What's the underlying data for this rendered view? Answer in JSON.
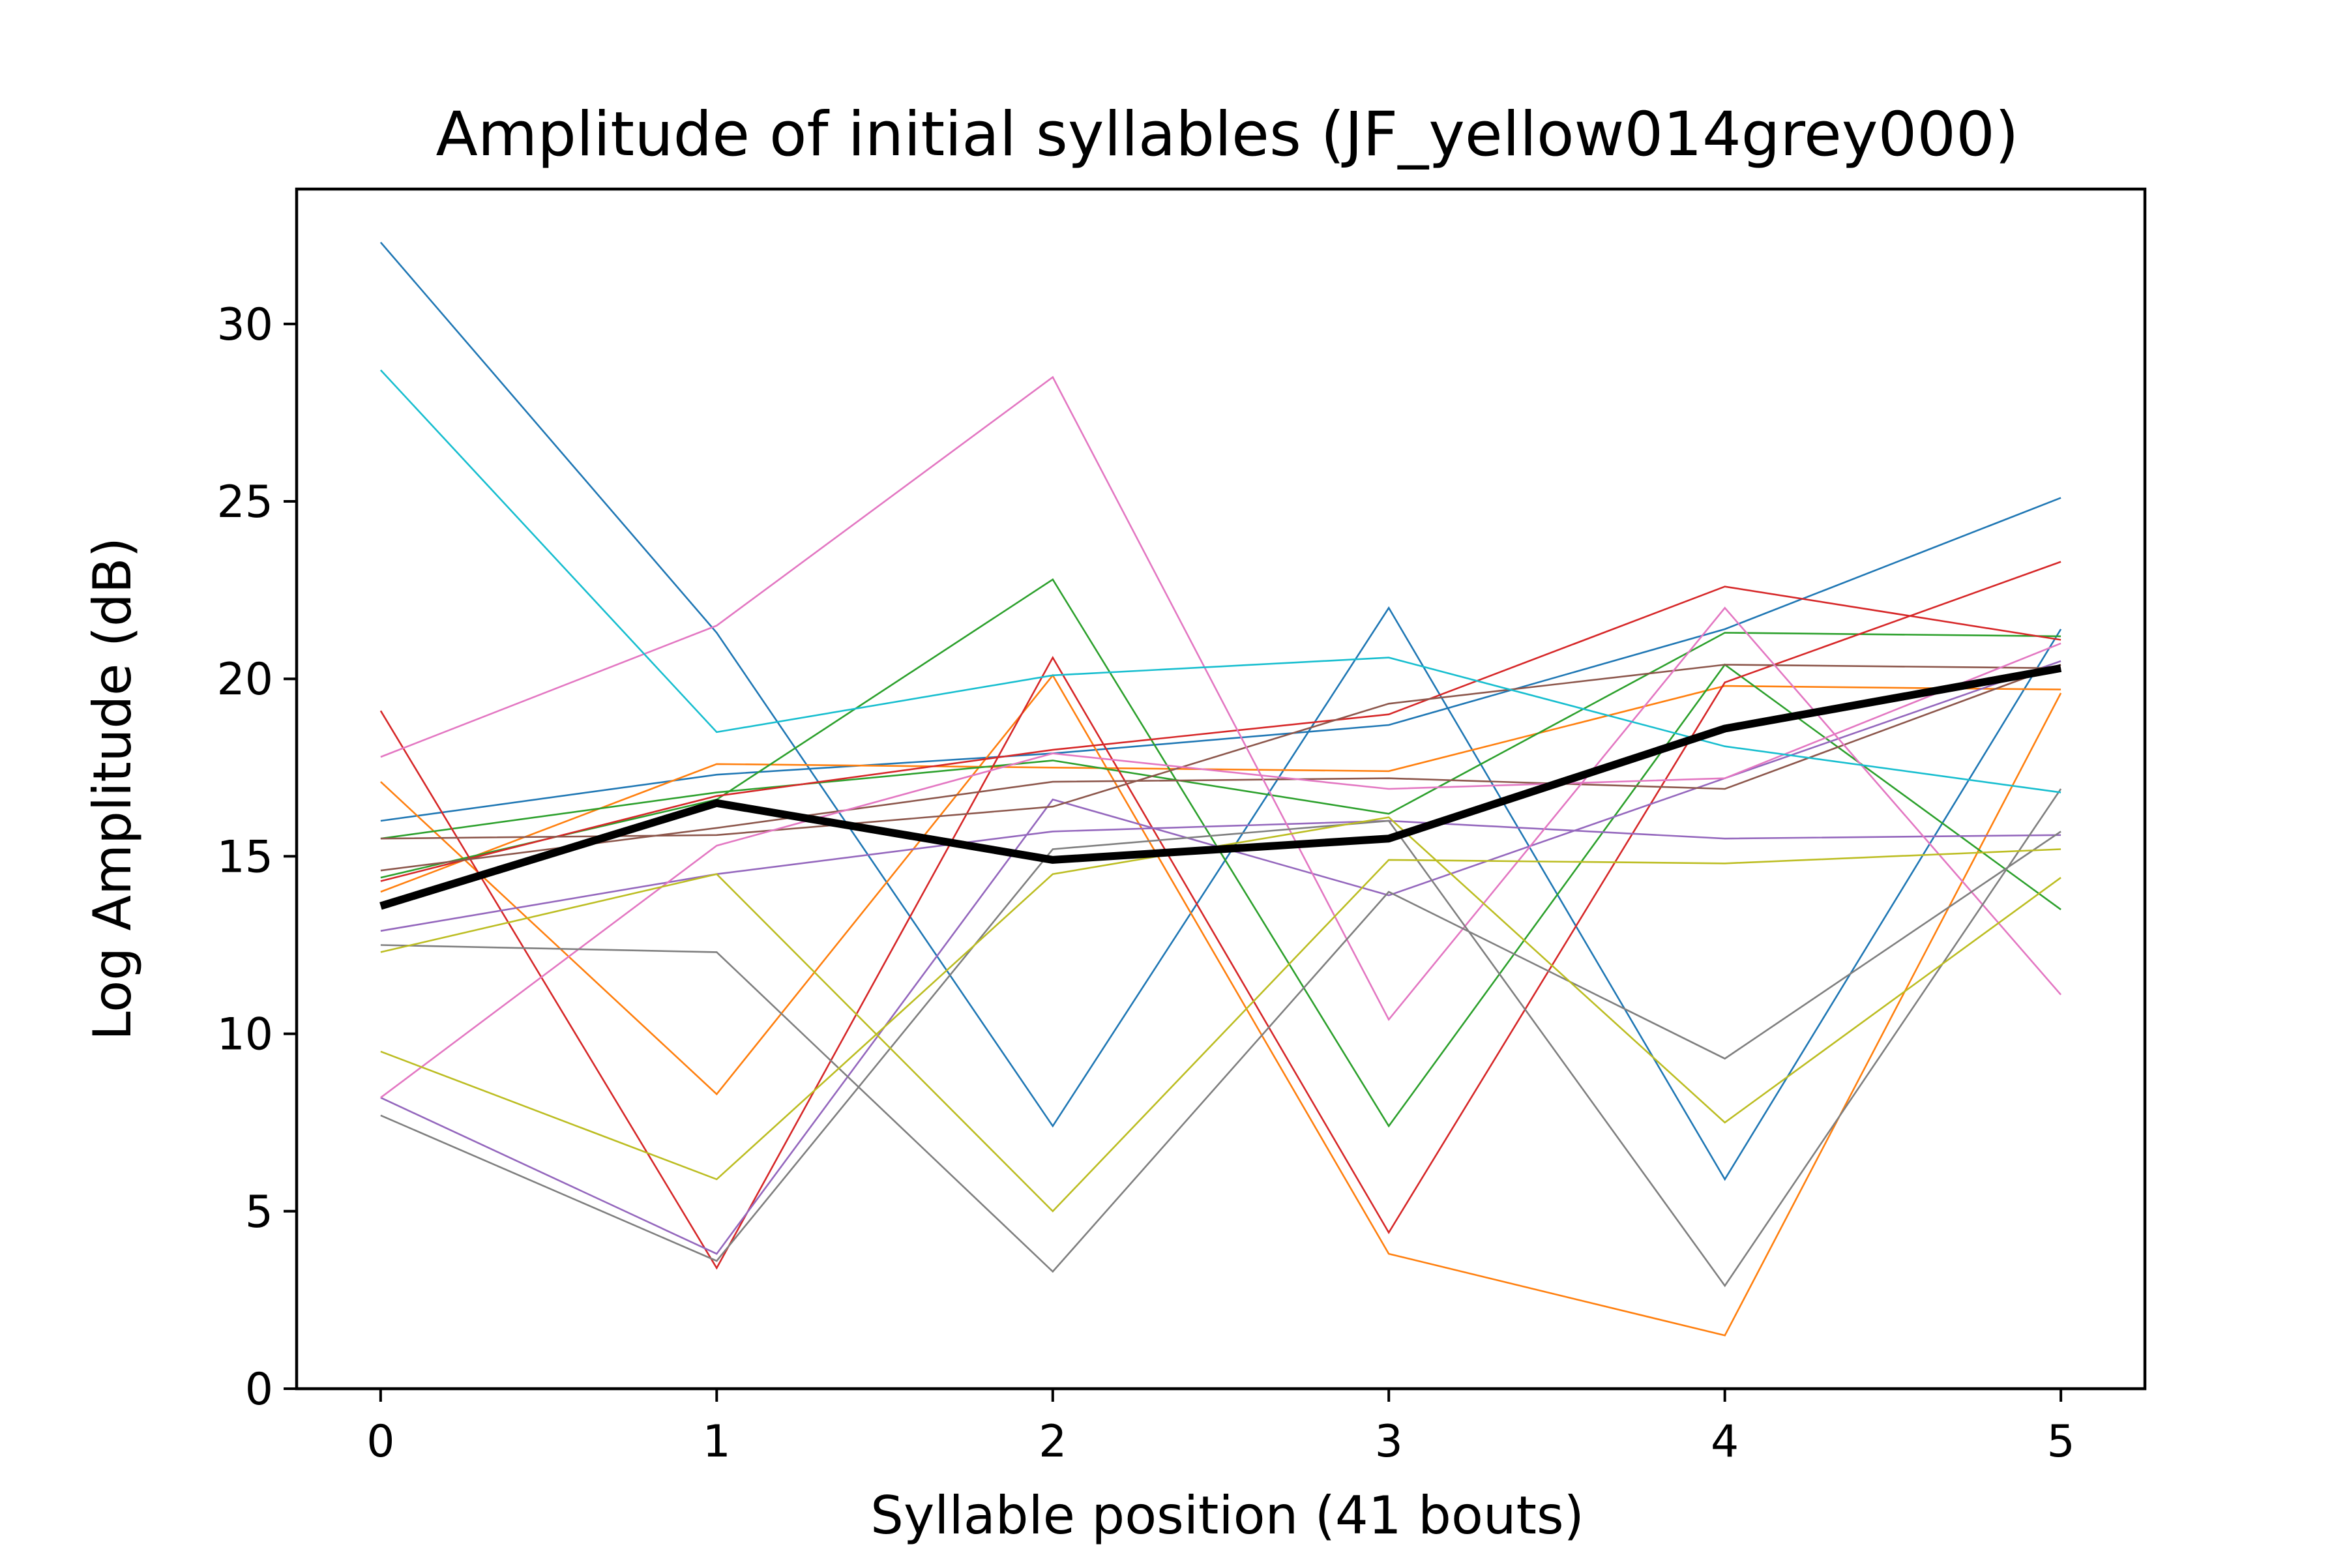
{
  "chart_data": {
    "type": "line",
    "title": "Amplitude of initial syllables (JF_yellow014grey000)",
    "xlabel": "Syllable position (41 bouts)",
    "ylabel": "Log Amplitude (dB)",
    "x": [
      0,
      1,
      2,
      3,
      4,
      5
    ],
    "xlim": [
      -0.25,
      5.25
    ],
    "ylim": [
      0,
      33.8
    ],
    "xticks": [
      "0",
      "1",
      "2",
      "3",
      "4",
      "5"
    ],
    "yticks": [
      "0",
      "5",
      "10",
      "15",
      "20",
      "25",
      "30"
    ],
    "grid": false,
    "series": [
      {
        "color": "#1f77b4",
        "values": [
          32.3,
          21.3,
          7.4,
          22.0,
          5.9,
          21.4
        ]
      },
      {
        "color": "#1f77b4",
        "values": [
          16.0,
          17.3,
          17.9,
          18.7,
          21.4,
          25.1
        ]
      },
      {
        "color": "#ff7f0e",
        "values": [
          17.1,
          8.3,
          20.1,
          3.8,
          1.5,
          19.6
        ]
      },
      {
        "color": "#ff7f0e",
        "values": [
          14.0,
          17.6,
          17.5,
          17.4,
          19.8,
          19.7
        ]
      },
      {
        "color": "#2ca02c",
        "values": [
          14.4,
          16.6,
          22.8,
          7.4,
          20.4,
          13.5
        ]
      },
      {
        "color": "#2ca02c",
        "values": [
          15.5,
          16.8,
          17.7,
          16.2,
          21.3,
          21.2
        ]
      },
      {
        "color": "#d62728",
        "values": [
          19.1,
          3.4,
          20.6,
          4.4,
          19.9,
          23.3
        ]
      },
      {
        "color": "#d62728",
        "values": [
          14.3,
          16.7,
          18.0,
          19.0,
          22.6,
          21.1
        ]
      },
      {
        "color": "#9467bd",
        "values": [
          8.2,
          3.8,
          16.6,
          13.9,
          17.2,
          20.5
        ]
      },
      {
        "color": "#9467bd",
        "values": [
          12.9,
          14.5,
          15.7,
          16.0,
          15.5,
          15.6
        ]
      },
      {
        "color": "#8c564b",
        "values": [
          15.5,
          15.6,
          16.4,
          19.3,
          20.4,
          20.3
        ]
      },
      {
        "color": "#8c564b",
        "values": [
          14.6,
          15.8,
          17.1,
          17.2,
          16.9,
          20.4
        ]
      },
      {
        "color": "#e377c2",
        "values": [
          17.8,
          21.5,
          28.5,
          10.4,
          22.0,
          11.1
        ]
      },
      {
        "color": "#e377c2",
        "values": [
          8.2,
          15.3,
          17.9,
          16.9,
          17.2,
          21.0
        ]
      },
      {
        "color": "#7f7f7f",
        "values": [
          12.5,
          12.3,
          3.3,
          14.0,
          9.3,
          15.7
        ]
      },
      {
        "color": "#7f7f7f",
        "values": [
          7.7,
          3.6,
          15.2,
          16.0,
          2.9,
          16.9
        ]
      },
      {
        "color": "#bcbd22",
        "values": [
          9.5,
          5.9,
          14.5,
          16.1,
          7.5,
          14.4
        ]
      },
      {
        "color": "#bcbd22",
        "values": [
          12.3,
          14.5,
          5.0,
          14.9,
          14.8,
          15.2
        ]
      },
      {
        "color": "#17becf",
        "values": [
          28.7,
          18.5,
          20.1,
          20.6,
          18.1,
          16.8
        ]
      },
      {
        "color": "#000000",
        "emphasis": true,
        "values": [
          13.6,
          16.5,
          14.9,
          15.5,
          18.6,
          20.3
        ]
      }
    ]
  }
}
